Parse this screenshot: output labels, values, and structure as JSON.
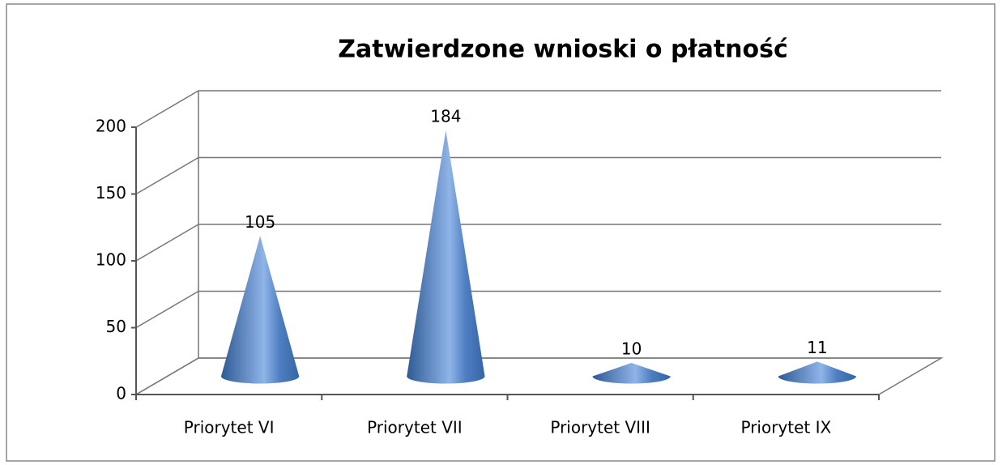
{
  "chart_data": {
    "type": "cone",
    "title": "Zatwierdzone wnioski o płatność",
    "categories": [
      "Priorytet VI",
      "Priorytet VII",
      "Priorytet VIII",
      "Priorytet IX"
    ],
    "values": [
      105,
      184,
      10,
      11
    ],
    "color": "#4a7bbd",
    "ylim": [
      0,
      200
    ],
    "yticks": [
      0,
      50,
      100,
      150,
      200
    ],
    "grid": true
  }
}
